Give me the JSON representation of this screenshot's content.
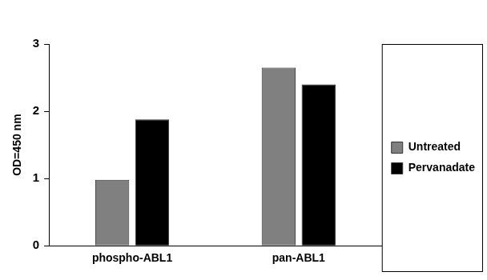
{
  "chart_data": {
    "type": "bar",
    "y_label": "OD=450 nm",
    "categories": [
      "phospho-ABL1",
      "pan-ABL1"
    ],
    "series": [
      {
        "name": "Untreated",
        "color": "#808080",
        "values": [
          0.98,
          2.65
        ]
      },
      {
        "name": "Pervanadate",
        "color": "#000000",
        "values": [
          1.88,
          2.4
        ]
      }
    ],
    "ylim": [
      0,
      3
    ],
    "yticks": [
      0,
      1,
      2,
      3
    ],
    "grid": false,
    "legend": "right"
  }
}
